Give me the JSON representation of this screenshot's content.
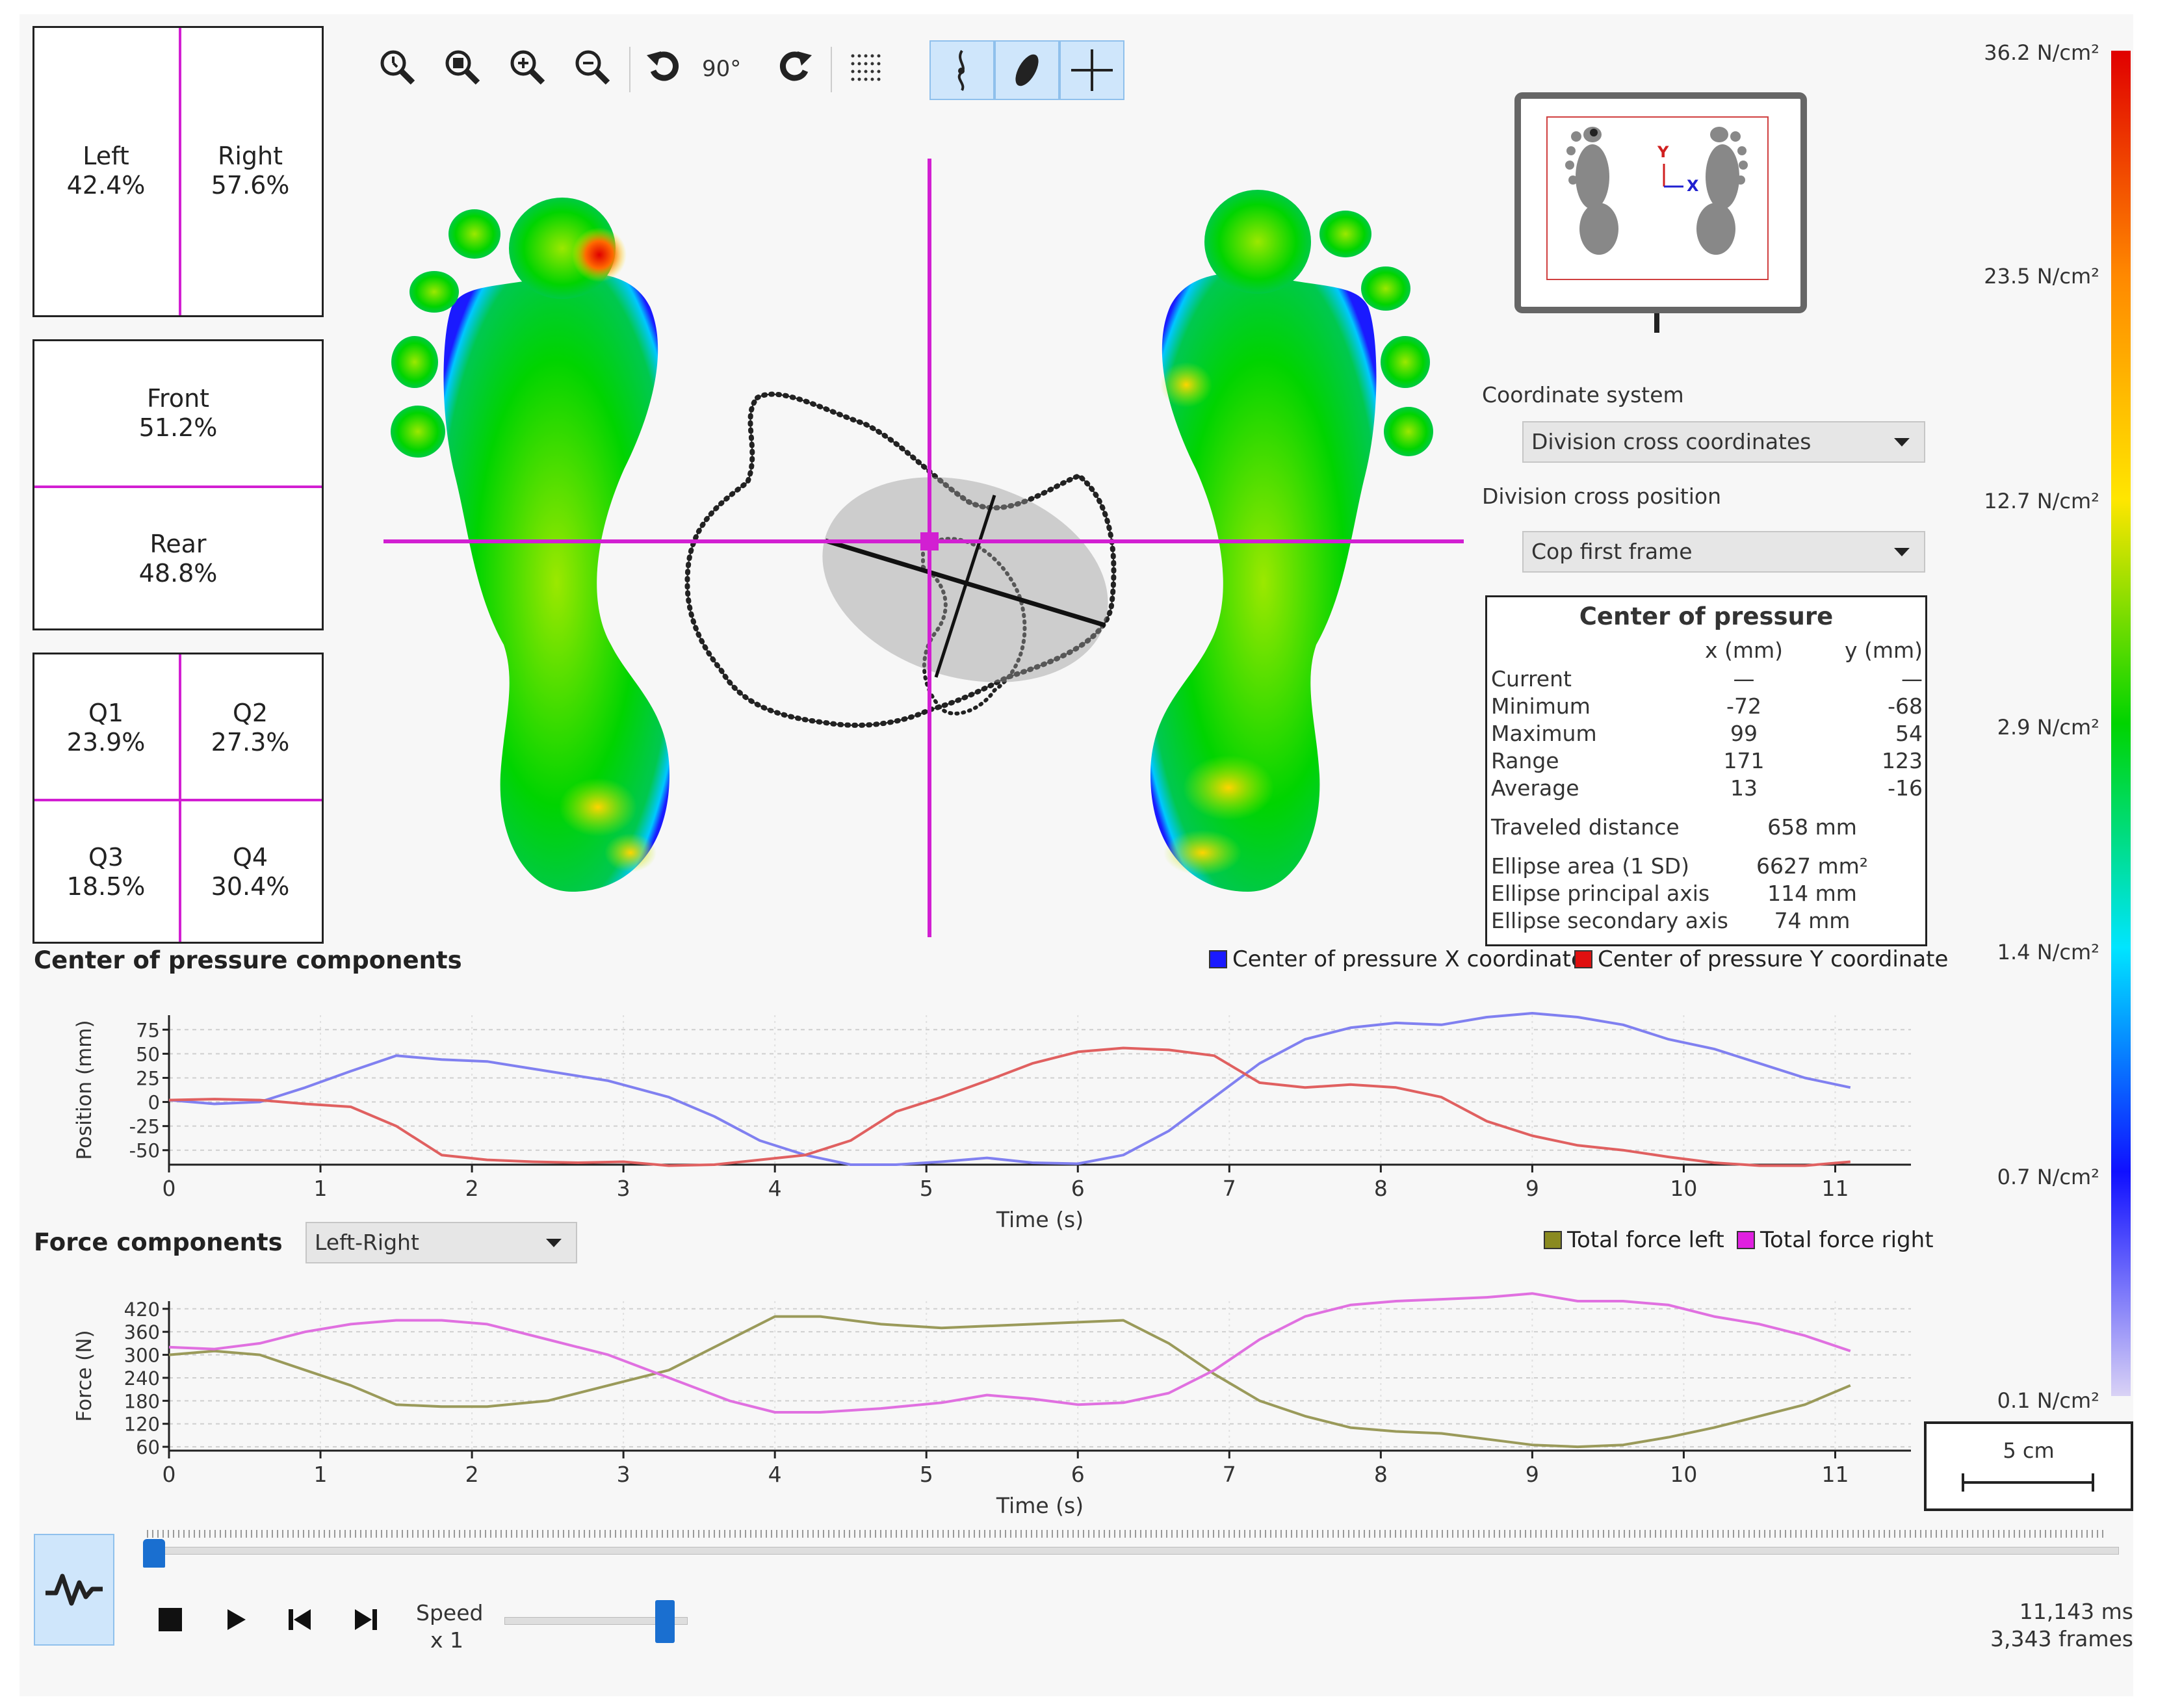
{
  "distribution": {
    "left_right": {
      "left_label": "Left",
      "left_value": "42.4%",
      "right_label": "Right",
      "right_value": "57.6%"
    },
    "front_rear": {
      "front_label": "Front",
      "front_value": "51.2%",
      "rear_label": "Rear",
      "rear_value": "48.8%"
    },
    "quadrants": {
      "q1_label": "Q1",
      "q1_value": "23.9%",
      "q2_label": "Q2",
      "q2_value": "27.3%",
      "q3_label": "Q3",
      "q3_value": "18.5%",
      "q4_label": "Q4",
      "q4_value": "30.4%"
    }
  },
  "toolbar": {
    "tools": [
      "zoom-reset-icon",
      "zoom-fit-icon",
      "zoom-in-icon",
      "zoom-out-icon",
      "rotate-left-icon",
      "rotate-right-icon",
      "grid-icon",
      "cop-trace-icon",
      "ellipse-icon",
      "division-cross-icon"
    ],
    "rotate_label": "90°",
    "active_tools": [
      "cop-trace-icon",
      "ellipse-icon",
      "division-cross-icon"
    ]
  },
  "overview": {
    "y_axis": "Y",
    "x_axis": "X"
  },
  "settings": {
    "coordinate_system_label": "Coordinate system",
    "coordinate_system_value": "Division cross coordinates",
    "division_cross_label": "Division cross position",
    "division_cross_value": "Cop first frame"
  },
  "cop_panel": {
    "title": "Center of pressure",
    "x_header": "x (mm)",
    "y_header": "y (mm)",
    "rows": [
      {
        "label": "Current",
        "x": "—",
        "y": "—"
      },
      {
        "label": "Minimum",
        "x": "-72",
        "y": "-68"
      },
      {
        "label": "Maximum",
        "x": "99",
        "y": "54"
      },
      {
        "label": "Range",
        "x": "171",
        "y": "123"
      },
      {
        "label": "Average",
        "x": "13",
        "y": "-16"
      }
    ],
    "traveled_label": "Traveled distance",
    "traveled_value": "658 mm",
    "ellipse_area_label": "Ellipse area (1 SD)",
    "ellipse_area_value": "6627 mm²",
    "ellipse_principal_label": "Ellipse principal axis",
    "ellipse_principal_value": "114 mm",
    "ellipse_secondary_label": "Ellipse secondary axis",
    "ellipse_secondary_value": "74 mm"
  },
  "colorscale": {
    "labels": [
      "36.2 N/cm²",
      "23.5 N/cm²",
      "12.7 N/cm²",
      "2.9 N/cm²",
      "1.4 N/cm²",
      "0.7 N/cm²",
      "0.1 N/cm²"
    ],
    "gradient": [
      "#d9d2f5",
      "#1010ff",
      "#00e5ff",
      "#00d400",
      "#ffe600",
      "#ff8800",
      "#e00000"
    ]
  },
  "scale_bar": {
    "label": "5 cm"
  },
  "cop_chart": {
    "section_title": "Center of pressure components",
    "chart_data": {
      "type": "line",
      "xlabel": "Time (s)",
      "ylabel": "Position (mm)",
      "xlim": [
        0,
        11.5
      ],
      "ylim": [
        -65,
        90
      ],
      "xticks": [
        "0",
        "1",
        "2",
        "3",
        "4",
        "5",
        "6",
        "7",
        "8",
        "9",
        "10",
        "11"
      ],
      "yticks": [
        "75",
        "50",
        "25",
        "0",
        "-25",
        "-50"
      ],
      "series": [
        {
          "name": "Center of pressure X coordinate",
          "color": "#8080f0",
          "x": [
            0,
            0.3,
            0.6,
            0.9,
            1.2,
            1.5,
            1.8,
            2.1,
            2.5,
            2.9,
            3.3,
            3.6,
            3.9,
            4.2,
            4.5,
            4.8,
            5.1,
            5.4,
            5.7,
            6.0,
            6.3,
            6.6,
            6.9,
            7.2,
            7.5,
            7.8,
            8.1,
            8.4,
            8.7,
            9.0,
            9.3,
            9.6,
            9.9,
            10.2,
            10.5,
            10.8,
            11.1
          ],
          "y": [
            2,
            -2,
            0,
            15,
            32,
            48,
            44,
            42,
            32,
            22,
            5,
            -15,
            -40,
            -55,
            -65,
            -65,
            -62,
            -58,
            -63,
            -64,
            -55,
            -30,
            5,
            40,
            65,
            77,
            82,
            80,
            88,
            92,
            88,
            80,
            65,
            55,
            40,
            25,
            15
          ]
        },
        {
          "name": "Center of pressure Y coordinate",
          "color": "#e06060",
          "x": [
            0,
            0.3,
            0.6,
            0.9,
            1.2,
            1.5,
            1.8,
            2.1,
            2.4,
            2.7,
            3.0,
            3.3,
            3.6,
            3.9,
            4.2,
            4.5,
            4.8,
            5.1,
            5.4,
            5.7,
            6.0,
            6.3,
            6.6,
            6.9,
            7.2,
            7.5,
            7.8,
            8.1,
            8.4,
            8.7,
            9.0,
            9.3,
            9.6,
            9.9,
            10.2,
            10.5,
            10.8,
            11.1
          ],
          "y": [
            2,
            3,
            2,
            -2,
            -5,
            -25,
            -55,
            -60,
            -62,
            -63,
            -62,
            -66,
            -65,
            -60,
            -55,
            -40,
            -10,
            5,
            22,
            40,
            52,
            56,
            54,
            48,
            20,
            15,
            18,
            15,
            5,
            -20,
            -35,
            -45,
            -50,
            -57,
            -63,
            -66,
            -66,
            -62
          ]
        }
      ]
    }
  },
  "force_chart": {
    "section_title": "Force components",
    "mode_value": "Left-Right",
    "chart_data": {
      "type": "line",
      "xlabel": "Time (s)",
      "ylabel": "Force (N)",
      "xlim": [
        0,
        11.5
      ],
      "ylim": [
        50,
        440
      ],
      "xticks": [
        "0",
        "1",
        "2",
        "3",
        "4",
        "5",
        "6",
        "7",
        "8",
        "9",
        "10",
        "11"
      ],
      "yticks": [
        "420",
        "360",
        "300",
        "240",
        "180",
        "120",
        "60"
      ],
      "series": [
        {
          "name": "Total force left",
          "color": "#9a9a5a",
          "x": [
            0,
            0.3,
            0.6,
            0.9,
            1.2,
            1.5,
            1.8,
            2.1,
            2.5,
            2.9,
            3.3,
            3.7,
            4.0,
            4.3,
            4.7,
            5.1,
            5.4,
            5.7,
            6.0,
            6.3,
            6.6,
            6.9,
            7.2,
            7.5,
            7.8,
            8.1,
            8.4,
            8.7,
            9.0,
            9.3,
            9.6,
            9.9,
            10.2,
            10.5,
            10.8,
            11.1
          ],
          "y": [
            300,
            310,
            300,
            260,
            220,
            170,
            165,
            165,
            180,
            220,
            260,
            340,
            400,
            400,
            380,
            370,
            375,
            380,
            385,
            390,
            330,
            250,
            180,
            140,
            110,
            100,
            95,
            80,
            65,
            60,
            65,
            85,
            110,
            140,
            170,
            220
          ]
        },
        {
          "name": "Total force right",
          "color": "#e070e0",
          "x": [
            0,
            0.3,
            0.6,
            0.9,
            1.2,
            1.5,
            1.8,
            2.1,
            2.5,
            2.9,
            3.3,
            3.7,
            4.0,
            4.3,
            4.7,
            5.1,
            5.4,
            5.7,
            6.0,
            6.3,
            6.6,
            6.9,
            7.2,
            7.5,
            7.8,
            8.1,
            8.4,
            8.7,
            9.0,
            9.3,
            9.6,
            9.9,
            10.2,
            10.5,
            10.8,
            11.1
          ],
          "y": [
            320,
            315,
            330,
            360,
            380,
            390,
            390,
            380,
            340,
            300,
            240,
            180,
            150,
            150,
            160,
            175,
            195,
            185,
            170,
            175,
            200,
            260,
            340,
            400,
            430,
            440,
            445,
            450,
            460,
            440,
            440,
            430,
            400,
            380,
            350,
            310
          ]
        }
      ]
    }
  },
  "playback": {
    "speed_label": "Speed",
    "speed_value": "x 1",
    "speed_fraction": 0.92,
    "timeline_fraction": 0.0,
    "duration": "11,143 ms",
    "frames": "3,343 frames"
  }
}
